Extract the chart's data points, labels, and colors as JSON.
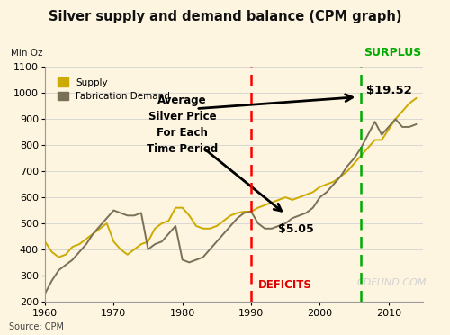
{
  "title": "Silver supply and demand balance (CPM graph)",
  "min_oz_label": "Min Oz",
  "source": "Source: CPM",
  "watermark": "CDFUND.COM",
  "background_color": "#fdf5e0",
  "ylim": [
    200,
    1100
  ],
  "xlim": [
    1960,
    2015
  ],
  "yticks": [
    200,
    300,
    400,
    500,
    600,
    700,
    800,
    900,
    1000,
    1100
  ],
  "xticks": [
    1960,
    1970,
    1980,
    1990,
    2000,
    2010
  ],
  "supply_years": [
    1960,
    1961,
    1962,
    1963,
    1964,
    1965,
    1966,
    1967,
    1968,
    1969,
    1970,
    1971,
    1972,
    1973,
    1974,
    1975,
    1976,
    1977,
    1978,
    1979,
    1980,
    1981,
    1982,
    1983,
    1984,
    1985,
    1986,
    1987,
    1988,
    1989,
    1990,
    1991,
    1992,
    1993,
    1994,
    1995,
    1996,
    1997,
    1998,
    1999,
    2000,
    2001,
    2002,
    2003,
    2004,
    2005,
    2006,
    2007,
    2008,
    2009,
    2010,
    2011,
    2012,
    2013,
    2014
  ],
  "supply_values": [
    430,
    390,
    370,
    380,
    410,
    420,
    440,
    460,
    480,
    500,
    430,
    400,
    380,
    400,
    420,
    430,
    480,
    500,
    510,
    560,
    560,
    530,
    490,
    480,
    480,
    490,
    510,
    530,
    540,
    545,
    545,
    560,
    570,
    580,
    590,
    600,
    590,
    600,
    610,
    620,
    640,
    650,
    660,
    680,
    700,
    730,
    760,
    790,
    820,
    820,
    860,
    900,
    930,
    960,
    980
  ],
  "demand_years": [
    1960,
    1961,
    1962,
    1963,
    1964,
    1965,
    1966,
    1967,
    1968,
    1969,
    1970,
    1971,
    1972,
    1973,
    1974,
    1975,
    1976,
    1977,
    1978,
    1979,
    1980,
    1981,
    1982,
    1983,
    1984,
    1985,
    1986,
    1987,
    1988,
    1989,
    1990,
    1991,
    1992,
    1993,
    1994,
    1995,
    1996,
    1997,
    1998,
    1999,
    2000,
    2001,
    2002,
    2003,
    2004,
    2005,
    2006,
    2007,
    2008,
    2009,
    2010,
    2011,
    2012,
    2013,
    2014
  ],
  "demand_values": [
    230,
    280,
    320,
    340,
    360,
    390,
    420,
    460,
    490,
    520,
    550,
    540,
    530,
    530,
    540,
    400,
    420,
    430,
    460,
    490,
    360,
    350,
    360,
    370,
    400,
    430,
    460,
    490,
    520,
    540,
    545,
    500,
    480,
    480,
    490,
    500,
    520,
    530,
    540,
    560,
    600,
    620,
    650,
    680,
    720,
    750,
    790,
    840,
    890,
    840,
    870,
    900,
    870,
    870,
    880
  ],
  "supply_color": "#ccaa00",
  "demand_color": "#7a7055",
  "red_vline1": 1990,
  "green_vline": 2006,
  "surplus_label": "SURPLUS",
  "surplus_color": "#00aa00",
  "deficits_label": "DEFICITS",
  "deficits_color": "#dd0000",
  "price1_label": "$5.05",
  "price2_label": "$19.52",
  "annotation_text": "Average\nSilver Price\nFor Each\nTime Period"
}
